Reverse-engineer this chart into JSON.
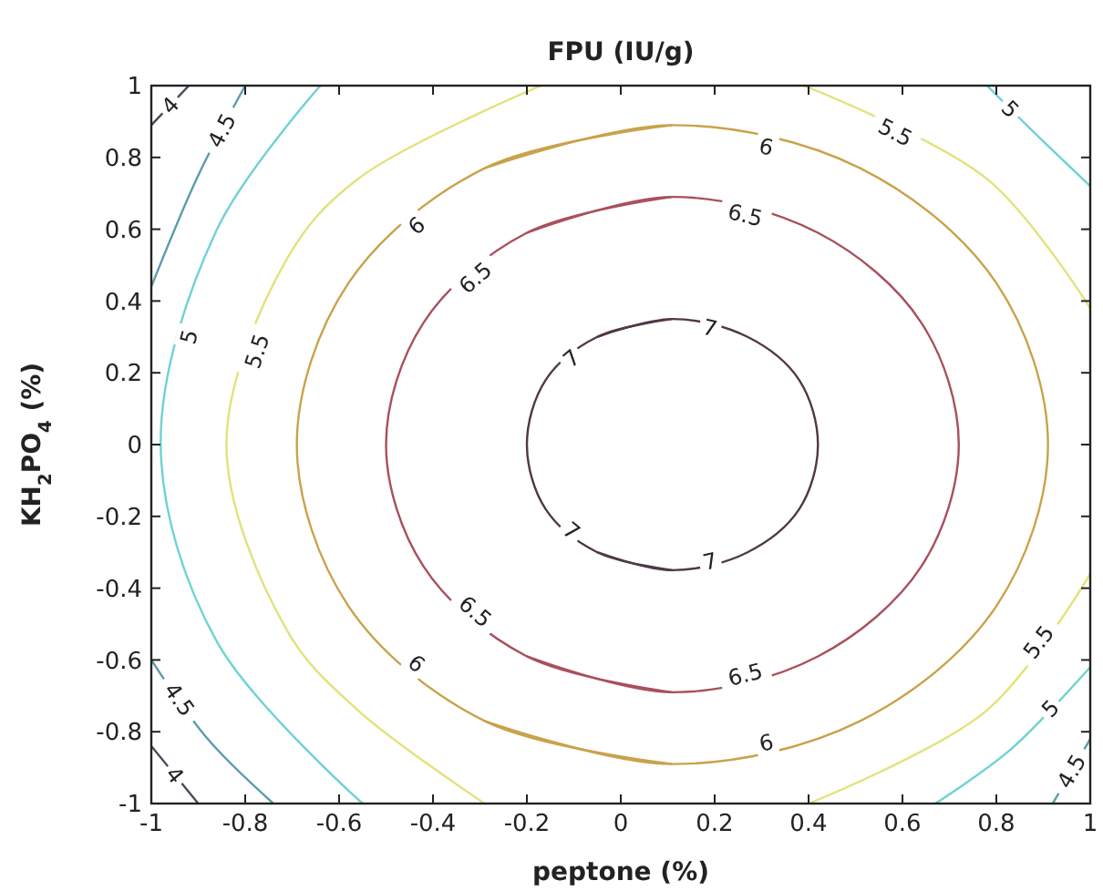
{
  "chart_data": {
    "type": "line",
    "title": "FPU (IU/g)",
    "xlabel": "peptone (%)",
    "ylabel": "KH$_{2}$PO$_{4}$ (%)",
    "xlim": [
      -1,
      1
    ],
    "ylim": [
      -1,
      1
    ],
    "xticks": [
      -1,
      -0.8,
      -0.6,
      -0.4,
      -0.2,
      0,
      0.2,
      0.4,
      0.6,
      0.8,
      1
    ],
    "yticks": [
      -1,
      -0.8,
      -0.6,
      -0.4,
      -0.2,
      0,
      0.2,
      0.4,
      0.6,
      0.8,
      1
    ],
    "series": [
      {
        "name": "4",
        "color": "#4a4a5a",
        "x": [
          -0.92,
          -1,
          null,
          -1,
          -0.9
        ],
        "values": [
          1,
          0.89,
          null,
          -0.84,
          -1
        ]
      },
      {
        "name": "4.5",
        "color": "#5b9cab",
        "x": [
          -0.8,
          -0.9,
          -1,
          null,
          -1,
          -0.88,
          -0.74,
          null,
          1,
          0.92
        ],
        "values": [
          1,
          0.75,
          0.44,
          null,
          -0.6,
          -0.82,
          -1,
          null,
          -0.82,
          -1
        ]
      },
      {
        "name": "5",
        "color": "#6fd2d2",
        "x": [
          -0.64,
          -0.86,
          -0.98,
          -0.86,
          -0.55,
          null,
          0.78,
          0.88,
          1,
          null,
          1,
          0.83,
          0.67
        ],
        "values": [
          1,
          0.6,
          0,
          -0.55,
          -1,
          null,
          1,
          0.87,
          0.72,
          null,
          -0.62,
          -0.85,
          -1
        ]
      },
      {
        "name": "5.5",
        "color": "#e2e27a",
        "x": [
          -0.17,
          -0.56,
          -0.71,
          -0.84,
          -0.71,
          -0.56,
          -0.29,
          null,
          0.39,
          0.78,
          1,
          null,
          1,
          0.78,
          0.4
        ],
        "values": [
          1,
          0.74,
          0.52,
          0,
          -0.52,
          -0.74,
          -1,
          null,
          1,
          0.74,
          0.38,
          null,
          -0.36,
          -0.74,
          -1
        ]
      },
      {
        "name": "6",
        "color": "#c9a24a",
        "x": [
          0.11,
          0.51,
          0.8,
          0.91,
          0.8,
          0.51,
          0.11,
          null,
          -0.29,
          -0.58,
          -0.69,
          -0.58,
          -0.29
        ],
        "values": [
          0.89,
          0.77,
          0.45,
          0,
          -0.45,
          -0.77,
          -0.89,
          null,
          -0.77,
          -0.45,
          0,
          0.45,
          0.77
        ]
      },
      {
        "name": "6.5",
        "color": "#a8505c",
        "x": [
          0.11,
          0.42,
          0.64,
          0.72,
          0.64,
          0.42,
          0.11,
          null,
          -0.2,
          -0.42,
          -0.5,
          -0.42,
          -0.2
        ],
        "values": [
          0.69,
          0.59,
          0.34,
          0,
          -0.34,
          -0.59,
          -0.69,
          null,
          -0.59,
          -0.34,
          0,
          0.34,
          0.59
        ]
      },
      {
        "name": "7",
        "color": "#503848",
        "x": [
          0.11,
          0.27,
          0.38,
          0.42,
          0.38,
          0.27,
          0.11,
          null,
          -0.05,
          -0.16,
          -0.2,
          -0.16,
          -0.05
        ],
        "values": [
          0.35,
          0.3,
          0.18,
          0,
          -0.18,
          -0.3,
          -0.35,
          null,
          -0.3,
          -0.18,
          0,
          0.18,
          0.3
        ]
      }
    ]
  }
}
